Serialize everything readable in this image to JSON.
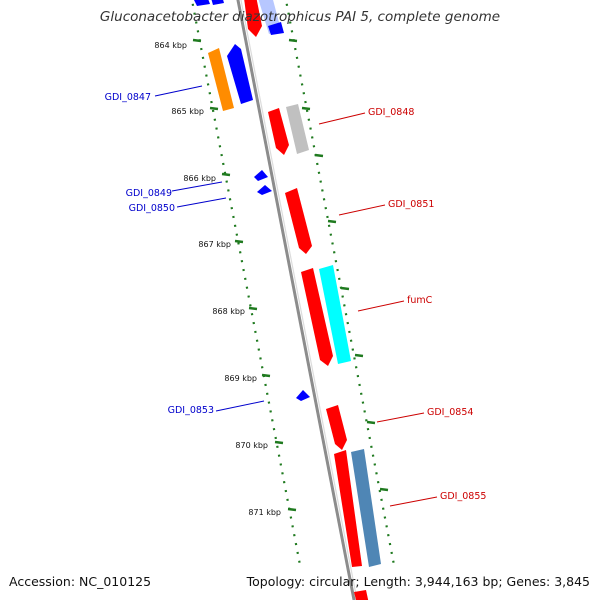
{
  "title": "Gluconacetobacter diazotrophicus PAI 5, complete genome",
  "footer": {
    "accession": "Accession: NC_010125",
    "summary": "Topology: circular; Length: 3,944,163 bp; Genes: 3,845"
  },
  "colors": {
    "backbone": "#8c8c8c",
    "ticks": "#1f7a1f",
    "minus_label": "#0000cc",
    "plus_label": "#cc0000",
    "red": "#ff0000",
    "blue": "#0000ff",
    "orange": "#ff8c00",
    "gray": "#bdbdbd",
    "cyan": "#00ffff",
    "steelblue": "#4f86b5",
    "lightblue": "#b7c7ff"
  },
  "ruler_labels": [
    "864 kbp",
    "865 kbp",
    "866 kbp",
    "867 kbp",
    "868 kbp",
    "869 kbp",
    "870 kbp",
    "871 kbp"
  ],
  "gene_labels_minus": [
    "GDI_0847",
    "GDI_0849",
    "GDI_0850",
    "GDI_0853"
  ],
  "gene_labels_plus": [
    "GDI_0848",
    "GDI_0851",
    "fumC",
    "GDI_0854",
    "GDI_0855"
  ]
}
